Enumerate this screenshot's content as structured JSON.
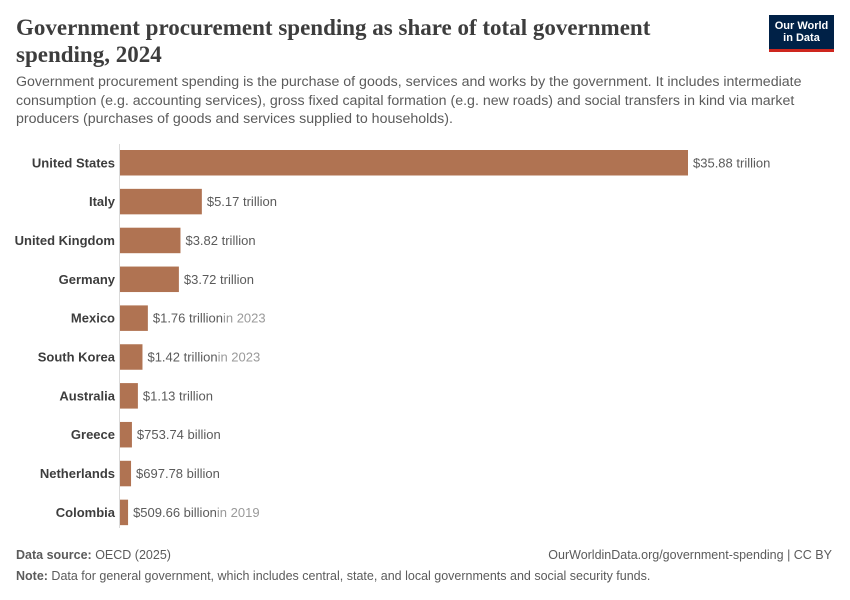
{
  "header": {
    "title": "Government procurement spending as share of total government spending, 2024",
    "subtitle": "Government procurement spending is the purchase of goods, services and works by the government. It includes intermediate consumption (e.g. accounting services), gross fixed capital formation (e.g. new roads) and social transfers in kind via market producers (purchases of goods and services supplied to households).",
    "logo_line1": "Our World",
    "logo_line2": "in Data"
  },
  "colors": {
    "bar": "#b07352",
    "label": "#3d3d3d",
    "value": "#5b5b5b",
    "year_note": "#9a9a9a",
    "axis": "#dadada"
  },
  "chart_data": {
    "type": "bar",
    "orientation": "horizontal",
    "title": "Government procurement spending as share of total government spending, 2024",
    "categories": [
      "United States",
      "Italy",
      "United Kingdom",
      "Germany",
      "Mexico",
      "South Korea",
      "Australia",
      "Greece",
      "Netherlands",
      "Colombia"
    ],
    "values": [
      35880000000000,
      5170000000000,
      3820000000000,
      3720000000000,
      1760000000000,
      1420000000000,
      1130000000000,
      753740000000,
      697780000000,
      509660000000
    ],
    "value_labels": [
      "$35.88 trillion",
      "$5.17 trillion",
      "$3.82 trillion",
      "$3.72 trillion",
      "$1.76 trillion",
      "$1.42 trillion",
      "$1.13 trillion",
      "$753.74 billion",
      "$697.78 billion",
      "$509.66 billion"
    ],
    "year_notes": [
      "",
      "",
      "",
      "",
      "in 2023",
      "in 2023",
      "",
      "",
      "",
      "in 2019"
    ],
    "xlim": [
      0,
      35880000000000
    ],
    "xlabel": "",
    "ylabel": ""
  },
  "footer": {
    "source_label": "Data source:",
    "source_text": " OECD (2025)",
    "credit": "OurWorldinData.org/government-spending | CC BY",
    "note_label": "Note:",
    "note_text": " Data for general government, which includes central, state, and local governments and social security funds."
  }
}
